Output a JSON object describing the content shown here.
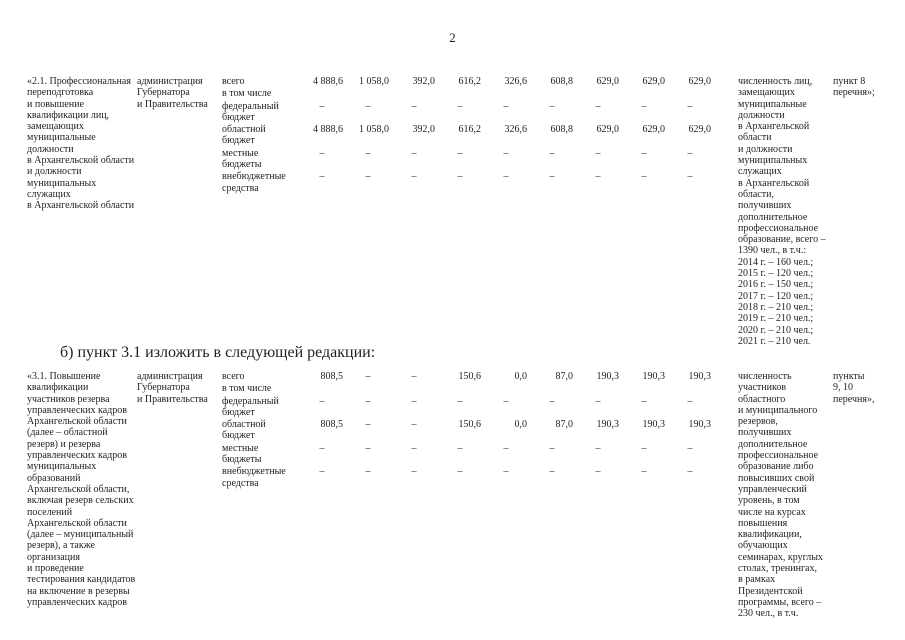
{
  "page": {
    "number": "2"
  },
  "amendment_heading": "б) пункт 3.1 изложить в следующей редакции:",
  "table_blocks": [
    {
      "item": "«2.1. Профессиональная\nпереподготовка\nи повышение\nквалификации лиц,\nзамещающих\nмуниципальные\nдолжности\nв Архангельской области\nи должности\nмуниципальных\nслужащих\nв Архангельской области",
      "executor": "администрация\nГубернатора\nи Правительства",
      "funding_rows": [
        {
          "label": "всего",
          "values": [
            "4 888,6",
            "1 058,0",
            "392,0",
            "616,2",
            "326,6",
            "608,8",
            "629,0",
            "629,0",
            "629,0"
          ]
        },
        {
          "label": "в том числе",
          "values": []
        },
        {
          "label": "федеральный\nбюджет",
          "values": [
            "–",
            "–",
            "–",
            "–",
            "–",
            "–",
            "–",
            "–",
            "–"
          ]
        },
        {
          "label": "областной\nбюджет",
          "values": [
            "4 888,6",
            "1 058,0",
            "392,0",
            "616,2",
            "326,6",
            "608,8",
            "629,0",
            "629,0",
            "629,0"
          ]
        },
        {
          "label": "местные\nбюджеты",
          "values": [
            "–",
            "–",
            "–",
            "–",
            "–",
            "–",
            "–",
            "–",
            "–"
          ]
        },
        {
          "label": "внебюджетные\nсредства",
          "values": [
            "–",
            "–",
            "–",
            "–",
            "–",
            "–",
            "–",
            "–",
            "–"
          ]
        }
      ],
      "indicator": "численность лиц,\nзамещающих\nмуниципальные\nдолжности\nв Архангельской\nобласти\nи должности\nмуниципальных\nслужащих\nв Архангельской\nобласти,\nполучивших\nдополнительное\nпрофессиональное\nобразование, всего –\n1390 чел., в т.ч.:\n2014 г. – 160 чел.;\n2015 г. – 120 чел.;\n2016 г. – 150 чел.;\n2017 г. – 120 чел.;\n2018 г. – 210 чел.;\n2019 г. – 210 чел.;\n2020 г. – 210 чел.;\n2021 г. – 210 чел.",
      "reference": "пункт 8\nперечня»;"
    },
    {
      "item": "«3.1. Повышение\nквалификации\nучастников резерва\nуправленческих кадров\nАрхангельской области\n(далее – областной\nрезерв) и резерва\nуправленческих кадров\nмуниципальных\nобразований\nАрхангельской области,\nвключая резерв сельских\nпоселений\nАрхангельской области\n(далее – муниципальный\nрезерв), а также\nорганизация\nи проведение\nтестирования кандидатов\nна включение в резервы\nуправленческих кадров",
      "executor": "администрация\nГубернатора\nи Правительства",
      "funding_rows": [
        {
          "label": "всего",
          "values": [
            "808,5",
            "–",
            "–",
            "150,6",
            "0,0",
            "87,0",
            "190,3",
            "190,3",
            "190,3"
          ]
        },
        {
          "label": "в том числе",
          "values": []
        },
        {
          "label": "федеральный\nбюджет",
          "values": [
            "–",
            "–",
            "–",
            "–",
            "–",
            "–",
            "–",
            "–",
            "–"
          ]
        },
        {
          "label": "областной\nбюджет",
          "values": [
            "808,5",
            "–",
            "–",
            "150,6",
            "0,0",
            "87,0",
            "190,3",
            "190,3",
            "190,3"
          ]
        },
        {
          "label": "местные\nбюджеты",
          "values": [
            "–",
            "–",
            "–",
            "–",
            "–",
            "–",
            "–",
            "–",
            "–"
          ]
        },
        {
          "label": "внебюджетные\nсредства",
          "values": [
            "–",
            "–",
            "–",
            "–",
            "–",
            "–",
            "–",
            "–",
            "–"
          ]
        }
      ],
      "indicator": "численность\nучастников\nобластного\nи муниципального\nрезервов,\nполучивших\nдополнительное\nпрофессиональное\nобразование либо\nповысивших свой\nуправленческий\nуровень, в том\nчисле на курсах\nповышения\nквалификации,\nобучающих\nсеминарах, круглых\nстолах, тренингах,\nв рамках\nПрезидентской\nпрограммы, всего –\n230 чел., в т.ч.",
      "reference": "пункты\n9, 10\nперечня»,"
    }
  ]
}
